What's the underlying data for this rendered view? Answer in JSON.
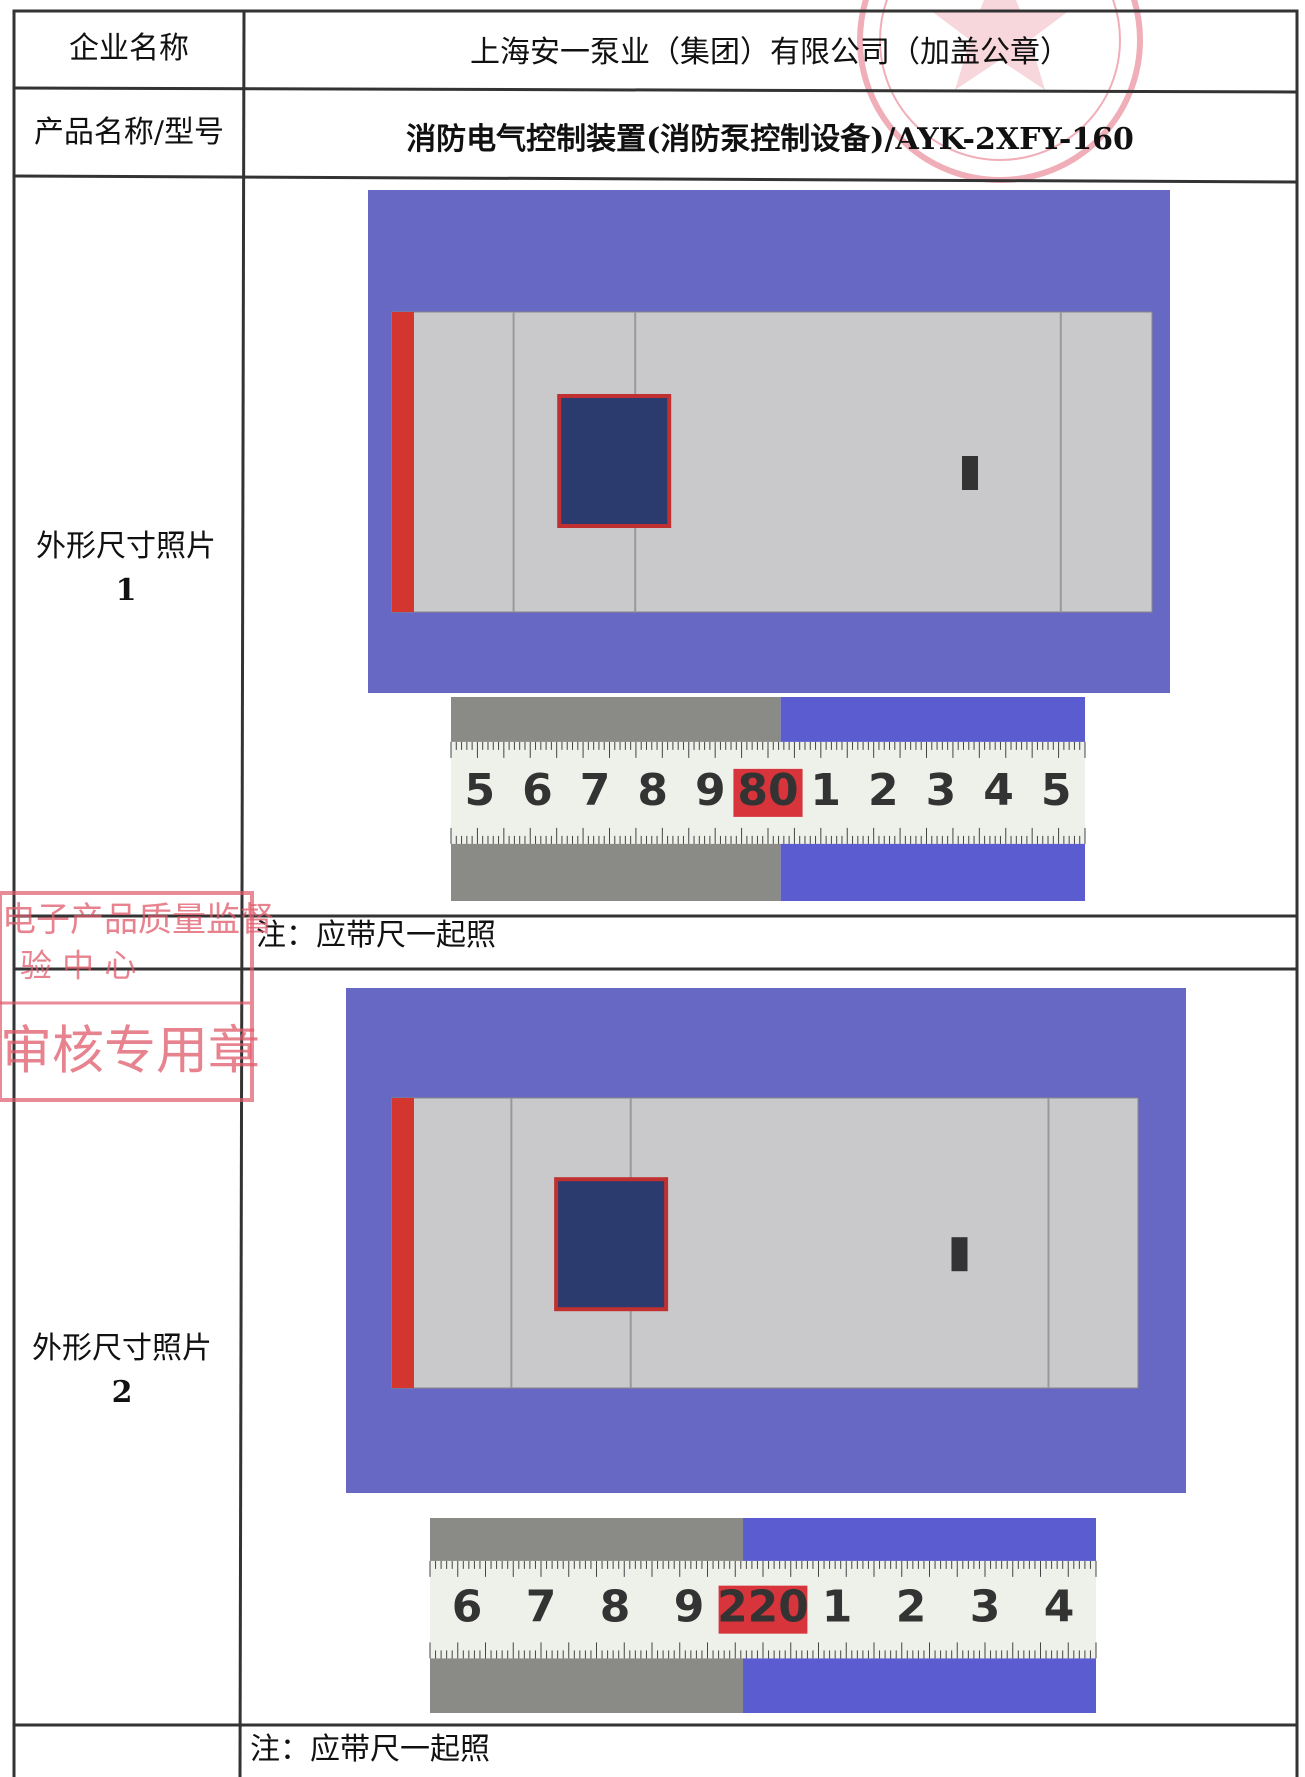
{
  "form": {
    "rows": [
      {
        "label": "企业名称",
        "value": "上海安一泵业（集团）有限公司（加盖公章）"
      },
      {
        "label": "产品名称/型号",
        "value": "消防电气控制装置(消防泵控制设备)/AYK-2XFY-160"
      }
    ],
    "photos": [
      {
        "label": "外形尺寸照片",
        "number": "1",
        "ruler": [
          "5",
          "6",
          "7",
          "8",
          "9",
          "80",
          "1",
          "2",
          "3",
          "4",
          "5"
        ],
        "note": "注：应带尺一起照"
      },
      {
        "label": "外形尺寸照片",
        "number": "2",
        "ruler": [
          "6",
          "7",
          "8",
          "9",
          "220",
          "1",
          "2",
          "3",
          "4"
        ],
        "note": "注：应带尺一起照"
      }
    ]
  },
  "stamp": {
    "lines": [
      "电子产品质量监督",
      "验  中  心",
      "审核专用章"
    ]
  }
}
